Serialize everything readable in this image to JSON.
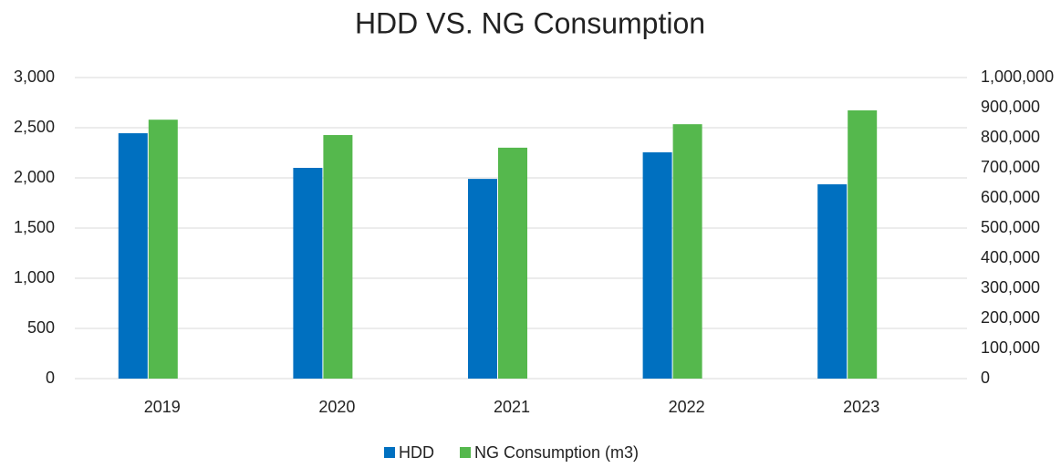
{
  "chart_data": {
    "type": "bar",
    "title": "HDD VS. NG Consumption",
    "categories": [
      "2019",
      "2020",
      "2021",
      "2022",
      "2023"
    ],
    "series": [
      {
        "name": "HDD",
        "color": "#0070c0",
        "values": [
          2445,
          2100,
          1990,
          2255,
          1936
        ]
      },
      {
        "name": "NG Consumption (m3)",
        "color": "#55b84d",
        "axis": "y2",
        "values": [
          860000,
          809000,
          767000,
          845000,
          891000
        ]
      }
    ],
    "ylim": [
      0,
      3000
    ],
    "yticks": [
      0,
      500,
      {
        "value": 1000,
        "label": "1,000"
      },
      {
        "value": 1500,
        "label": "1,500"
      },
      {
        "value": 2000,
        "label": "2,000"
      },
      {
        "value": 2500,
        "label": "2,500"
      },
      {
        "value": 3000,
        "label": "3,000"
      }
    ],
    "y2lim": [
      0,
      1000000
    ],
    "y2ticks": [
      0,
      {
        "value": 100000,
        "label": "100,000"
      },
      {
        "value": 200000,
        "label": "200,000"
      },
      {
        "value": 300000,
        "label": "300,000"
      },
      {
        "value": 400000,
        "label": "400,000"
      },
      {
        "value": 500000,
        "label": "500,000"
      },
      {
        "value": 600000,
        "label": "600,000"
      },
      {
        "value": 700000,
        "label": "700,000"
      },
      {
        "value": 800000,
        "label": "800,000"
      },
      {
        "value": 900000,
        "label": "900,000"
      },
      {
        "value": 1000000,
        "label": "1,000,000"
      }
    ],
    "grid": true,
    "legend": "bottom"
  }
}
